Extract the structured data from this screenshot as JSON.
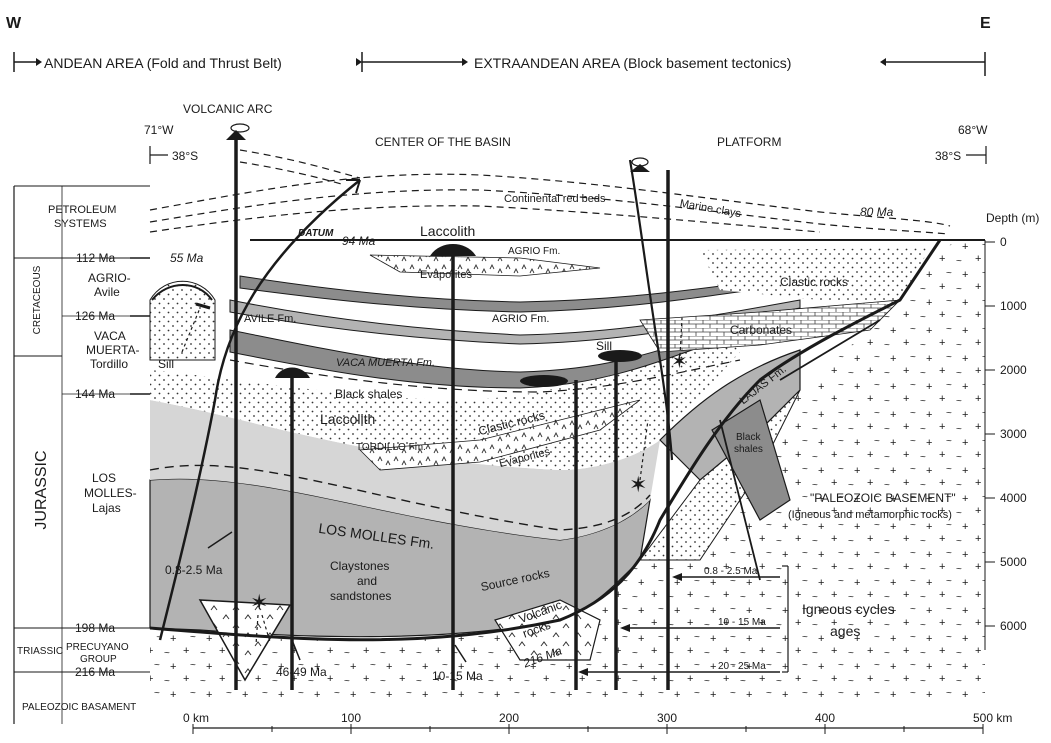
{
  "header": {
    "west": "W",
    "east": "E",
    "andean_area": "ANDEAN AREA (Fold and Thrust Belt)",
    "extraandean_area": "EXTRAANDEAN AREA (Block basement tectonics)"
  },
  "top_labels": {
    "volcanic_arc": "VOLCANIC ARC",
    "center_basin": "CENTER OF THE BASIN",
    "platform": "PLATFORM",
    "lon_west": "71°W",
    "lon_east": "68°W",
    "lat_west": "38°S",
    "lat_east": "38°S"
  },
  "left_column": {
    "petroleum_systems": [
      "PETROLEUM",
      "SYSTEMS"
    ],
    "periods": {
      "cretaceous": "CRETACEOUS",
      "jurassic": "JURASSIC",
      "triassic": "TRIASSIC"
    },
    "ages": {
      "a112": "112 Ma",
      "a126": "126 Ma",
      "a144": "144 Ma",
      "a198": "198 Ma",
      "a216": "216 Ma"
    },
    "systems": {
      "agrio_avile": [
        "AGRIO-",
        "Avile"
      ],
      "vaca_muerta": [
        "VACA",
        "MUERTA-",
        "Tordillo"
      ],
      "los_molles": [
        "LOS",
        "MOLLES-",
        "Lajas"
      ],
      "precuyano": [
        "PRECUYANO",
        "GROUP"
      ]
    },
    "paleozoic_basement": "PALEOZOIC BASAMENT"
  },
  "depth_axis": {
    "title": "Depth (m)",
    "ticks": [
      "0",
      "1000",
      "2000",
      "3000",
      "4000",
      "5000",
      "6000"
    ]
  },
  "distance_axis": {
    "ticks": [
      "0 km",
      "100",
      "200",
      "300",
      "400",
      "500 km"
    ]
  },
  "section_labels": {
    "continental_red_beds": "Continental red beds",
    "marine_clays": "Marine clays",
    "ma80": "80 Ma",
    "datum": "DATUM",
    "ma94": "94 Ma",
    "ma55": "55 Ma",
    "laccolith_top": "Laccolith",
    "agrio_fm_top": "AGRIO Fm.",
    "evaporites_top": "Evaporites",
    "agrio_fm": "AGRIO Fm.",
    "clastic_rocks_right": "Clastic rocks",
    "carbonates": "Carbonates",
    "avile_fm": "AVILE Fm.",
    "vaca_muerta_fm": "VACA MUERTA Fm.",
    "sill_left": "Sill",
    "sill_mid": "Sill",
    "sill_right": "Sill",
    "lajas_fm": "LAJAS Fm.",
    "black_shales": "Black shales",
    "laccolith_mid": "Laccolith",
    "clastic_rocks_mid": "Clastic rocks",
    "tordillo_fm": "TORDILLO Fm.",
    "evaporites_mid": "Evaporites",
    "black_shales_right": [
      "Black",
      "shales"
    ],
    "paleozoic_basement_title": "\"PALEOZOIC BASEMENT\"",
    "paleozoic_basement_sub": "(Igneous and metamorphic rocks)",
    "los_molles_fm": "LOS MOLLES Fm.",
    "claystones": [
      "Claystones",
      "and",
      "sandstones"
    ],
    "source_rocks": "Source rocks",
    "volcanic_rocks": [
      "Volcanic",
      "rocks"
    ],
    "ma216_inner": "216 Ma",
    "ma_08_25_left": "0.8-2.5 Ma",
    "ma_46_49": "46-49 Ma",
    "ma_10_15": "10-15 Ma"
  },
  "igneous_cycles": {
    "title": [
      "Igneous cycles",
      "ages"
    ],
    "c1": "0.8 - 2.5 Ma",
    "c2": "10 - 15 Ma",
    "c3": "20 - 25 Ma"
  },
  "colors": {
    "ink": "#1a1a1a",
    "dark_gray": "#8c8c8c",
    "mid_gray": "#b3b3b3",
    "light_gray": "#d6d6d6",
    "paper": "#ffffff"
  }
}
